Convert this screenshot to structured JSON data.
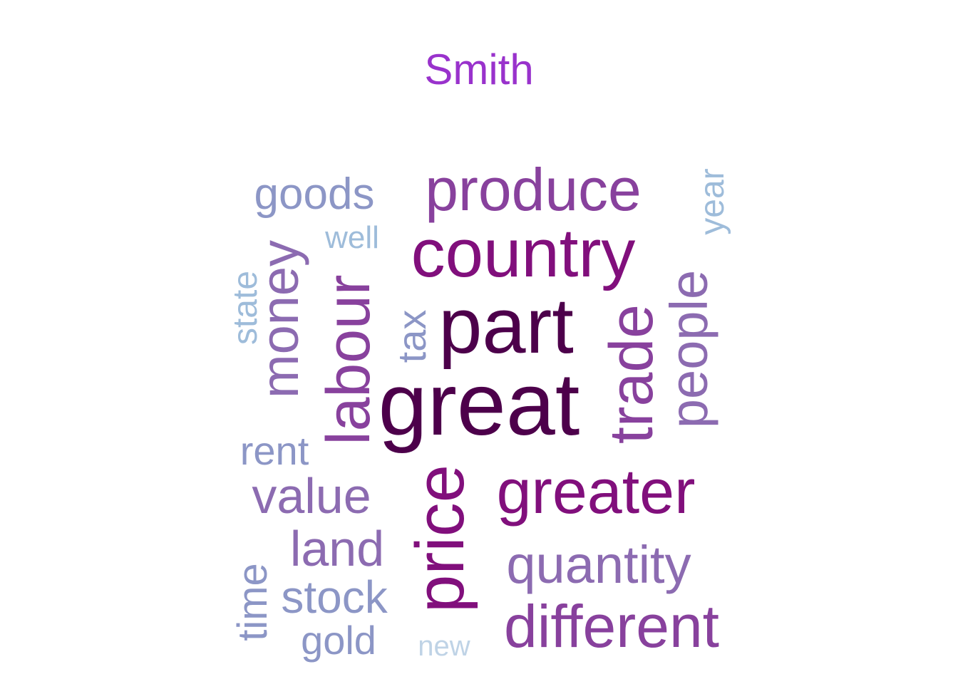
{
  "title": "Smith",
  "words": [
    {
      "text": "great",
      "color": "#4D004B"
    },
    {
      "text": "part",
      "color": "#4D004B"
    },
    {
      "text": "country",
      "color": "#810F7C"
    },
    {
      "text": "produce",
      "color": "#88419D"
    },
    {
      "text": "greater",
      "color": "#810F7C"
    },
    {
      "text": "price",
      "color": "#810F7C"
    },
    {
      "text": "labour",
      "color": "#88419D"
    },
    {
      "text": "trade",
      "color": "#88419D"
    },
    {
      "text": "different",
      "color": "#88419D"
    },
    {
      "text": "quantity",
      "color": "#8C6BB1"
    },
    {
      "text": "money",
      "color": "#8C6BB1"
    },
    {
      "text": "people",
      "color": "#8C6BB1"
    },
    {
      "text": "value",
      "color": "#8C6BB1"
    },
    {
      "text": "land",
      "color": "#8C6BB1"
    },
    {
      "text": "goods",
      "color": "#8C96C6"
    },
    {
      "text": "stock",
      "color": "#8C96C6"
    },
    {
      "text": "rent",
      "color": "#8C96C6"
    },
    {
      "text": "gold",
      "color": "#8C96C6"
    },
    {
      "text": "time",
      "color": "#8C96C6"
    },
    {
      "text": "tax",
      "color": "#8C96C6"
    },
    {
      "text": "state",
      "color": "#9EBCDA"
    },
    {
      "text": "well",
      "color": "#9EBCDA"
    },
    {
      "text": "year",
      "color": "#9EBCDA"
    },
    {
      "text": "new",
      "color": "#BFD3E6"
    }
  ]
}
